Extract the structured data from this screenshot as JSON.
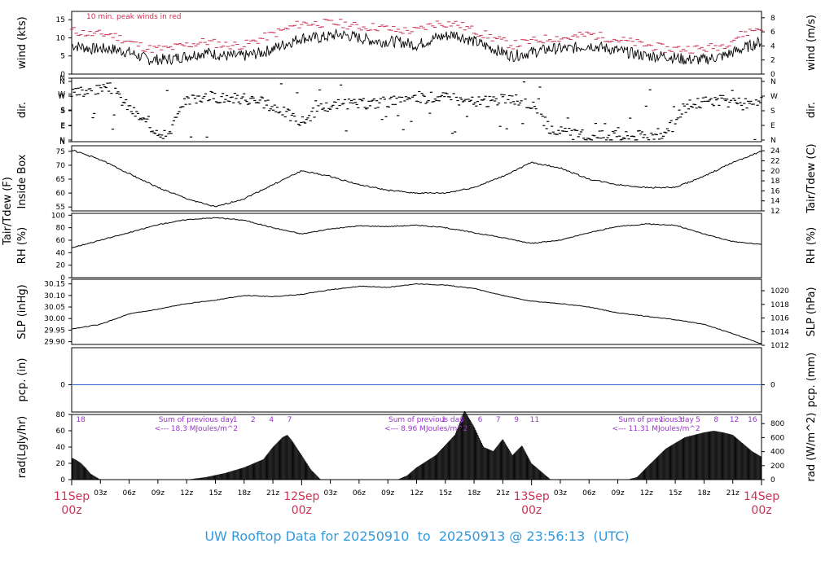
{
  "footer": {
    "title": "UW Rooftop Data for 20250910  to  20250913 @ 23:56:13  (UTC)"
  },
  "colors": {
    "peak": "#cc3355",
    "precip_line": "#3366cc",
    "note_purple": "#9933cc",
    "day_label": "#cc3355",
    "title": "#3399dd"
  },
  "chart_data": [
    {
      "id": "wind",
      "type": "line",
      "title": "",
      "ylabel": "wind (kts)",
      "ylabel_right": "wind (m/s)",
      "ylim": [
        0,
        17.3
      ],
      "y_ticks": [
        "0",
        "5",
        "10",
        "15"
      ],
      "y_tick_values": [
        0,
        5,
        10,
        15
      ],
      "y2_ticks": [
        "0",
        "2",
        "4",
        "6",
        "8"
      ],
      "y2_tick_values": [
        0,
        2,
        4,
        6,
        8
      ],
      "annotation": "10 min. peak winds in red",
      "x": [
        0,
        2,
        4,
        6,
        8,
        10,
        12,
        14,
        16,
        18,
        20,
        22,
        24,
        26,
        28,
        30,
        32,
        34,
        36,
        38,
        40,
        42,
        44,
        46,
        48,
        50,
        52,
        54,
        56,
        58,
        60,
        62,
        64,
        66,
        68,
        70,
        72
      ],
      "series": [
        {
          "role": "mean",
          "values": [
            8,
            7,
            7,
            6,
            4,
            4,
            5,
            6,
            5,
            5,
            6,
            8,
            10,
            10,
            11,
            10,
            9,
            9,
            8,
            10,
            11,
            9,
            7,
            5,
            6,
            7,
            7,
            8,
            7,
            6,
            5,
            5,
            4,
            4,
            5,
            7,
            9
          ]
        },
        {
          "role": "peak",
          "values": [
            12,
            11,
            11,
            9,
            7,
            7,
            8,
            9,
            8,
            8,
            10,
            12,
            14,
            14,
            14,
            13,
            13,
            12,
            12,
            14,
            14,
            12,
            10,
            8,
            9,
            10,
            10,
            11,
            10,
            9,
            8,
            7,
            7,
            7,
            8,
            11,
            13
          ]
        }
      ]
    },
    {
      "id": "dir",
      "type": "scatter",
      "ylabel": "dir.",
      "ylabel_right": "dir.",
      "ylim": [
        0,
        360
      ],
      "y_ticks": [
        "N",
        "E",
        "S",
        "W",
        "N"
      ],
      "y_tick_values": [
        0,
        90,
        180,
        270,
        360
      ],
      "x": [
        0,
        2,
        4,
        6,
        8,
        10,
        12,
        14,
        16,
        18,
        20,
        22,
        24,
        26,
        28,
        30,
        32,
        34,
        36,
        38,
        40,
        42,
        44,
        46,
        48,
        50,
        52,
        54,
        56,
        58,
        60,
        62,
        64,
        66,
        68,
        70,
        72
      ],
      "values": [
        280,
        300,
        320,
        200,
        90,
        30,
        250,
        270,
        260,
        250,
        230,
        180,
        110,
        200,
        220,
        220,
        230,
        240,
        250,
        270,
        250,
        230,
        240,
        250,
        220,
        60,
        40,
        20,
        30,
        25,
        30,
        40,
        200,
        240,
        240,
        220,
        230
      ]
    },
    {
      "id": "temp",
      "type": "line",
      "ylabel": "Tair/Tdew (F)",
      "ylabel2": "Inside Box",
      "ylabel_right": "Tair/Tdew (C)",
      "ylim": [
        53.6,
        77
      ],
      "y_ticks": [
        "55",
        "60",
        "65",
        "70",
        "75"
      ],
      "y_tick_values": [
        55,
        60,
        65,
        70,
        75
      ],
      "y2_ticks": [
        "12",
        "14",
        "16",
        "18",
        "20",
        "22",
        "24"
      ],
      "y2_tick_values": [
        12,
        14,
        16,
        18,
        20,
        22,
        24
      ],
      "x": [
        0,
        3,
        6,
        9,
        12,
        15,
        18,
        21,
        24,
        27,
        30,
        33,
        36,
        39,
        42,
        45,
        48,
        51,
        54,
        57,
        60,
        63,
        66,
        69,
        72
      ],
      "values": [
        75.5,
        72,
        67,
        62,
        58,
        55,
        58,
        63,
        68,
        66,
        63,
        61,
        60,
        60,
        62,
        66,
        71,
        69,
        65,
        63,
        62,
        62,
        66,
        71,
        75
      ]
    },
    {
      "id": "rh",
      "type": "line",
      "ylabel": "RH (%)",
      "ylabel_right": "RH (%)",
      "ylim": [
        0,
        103
      ],
      "y_ticks": [
        "0",
        "20",
        "40",
        "60",
        "80",
        "100"
      ],
      "y_tick_values": [
        0,
        20,
        40,
        60,
        80,
        100
      ],
      "x": [
        0,
        3,
        6,
        9,
        12,
        15,
        18,
        21,
        24,
        27,
        30,
        33,
        36,
        39,
        42,
        45,
        48,
        51,
        54,
        57,
        60,
        63,
        66,
        69,
        72
      ],
      "values": [
        48,
        60,
        72,
        85,
        93,
        96,
        92,
        80,
        70,
        78,
        83,
        82,
        84,
        80,
        72,
        64,
        55,
        60,
        72,
        82,
        86,
        84,
        70,
        58,
        53
      ]
    },
    {
      "id": "slp",
      "type": "line",
      "ylabel": "SLP (inHg)",
      "ylabel_right": "SLP (hPa)",
      "ylim": [
        29.888,
        30.17
      ],
      "y_ticks": [
        "29.90",
        "29.95",
        "30.00",
        "30.05",
        "30.10",
        "30.15"
      ],
      "y_tick_values": [
        29.9,
        29.95,
        30.0,
        30.05,
        30.1,
        30.15
      ],
      "y2_ticks": [
        "1012",
        "1014",
        "1016",
        "1018",
        "1020"
      ],
      "y2_tick_values": [
        1012,
        1014,
        1016,
        1018,
        1020
      ],
      "x": [
        0,
        3,
        6,
        9,
        12,
        15,
        18,
        21,
        24,
        27,
        30,
        33,
        36,
        39,
        42,
        45,
        48,
        51,
        54,
        57,
        60,
        63,
        66,
        69,
        72
      ],
      "values": [
        29.955,
        29.975,
        30.02,
        30.04,
        30.065,
        30.08,
        30.1,
        30.095,
        30.105,
        30.125,
        30.14,
        30.135,
        30.15,
        30.145,
        30.13,
        30.1,
        30.075,
        30.065,
        30.05,
        30.025,
        30.01,
        29.995,
        29.975,
        29.935,
        29.89
      ]
    },
    {
      "id": "pcp",
      "type": "line",
      "ylabel": "pcp. (in)",
      "ylabel_right": "pcp. (mm)",
      "y_ticks": [
        "0"
      ],
      "y2_ticks": [
        "0"
      ],
      "x": [
        0,
        72
      ],
      "values": [
        0,
        0
      ]
    },
    {
      "id": "rad",
      "type": "area",
      "ylabel": "rad(Lgly/hr)",
      "ylabel_right": "rad (W/m^2)",
      "ylim": [
        0,
        80
      ],
      "y_ticks": [
        "0",
        "20",
        "40",
        "60",
        "80"
      ],
      "y_tick_values": [
        0,
        20,
        40,
        60,
        80
      ],
      "y2_ticks": [
        "0",
        "200",
        "400",
        "600",
        "800"
      ],
      "y2_tick_values": [
        0,
        200,
        400,
        600,
        800
      ],
      "x": [
        0,
        0.5,
        1,
        1.5,
        2,
        3,
        12,
        14,
        16,
        18,
        20,
        21,
        22,
        22.5,
        23,
        24,
        25,
        26,
        34,
        35,
        36,
        38,
        40,
        41,
        42,
        43,
        44,
        45,
        46,
        47,
        48,
        49,
        50,
        58,
        59,
        60,
        62,
        64,
        66,
        67,
        68,
        69,
        70,
        71,
        72
      ],
      "values": [
        27,
        24,
        20,
        14,
        7,
        0,
        0,
        3,
        8,
        15,
        25,
        40,
        52,
        55,
        48,
        30,
        12,
        0,
        0,
        5,
        15,
        30,
        55,
        85,
        65,
        40,
        35,
        50,
        30,
        42,
        20,
        10,
        0,
        0,
        3,
        15,
        38,
        52,
        58,
        60,
        58,
        55,
        45,
        35,
        28
      ],
      "hour_labels_top": [
        {
          "x": 1,
          "label": "18"
        },
        {
          "x": 18,
          "label": "1"
        },
        {
          "x": 20,
          "label": "2"
        },
        {
          "x": 22,
          "label": "4"
        },
        {
          "x": 24,
          "label": "7"
        },
        {
          "x": 41,
          "label": "1"
        },
        {
          "x": 43,
          "label": "3"
        },
        {
          "x": 45,
          "label": "6"
        },
        {
          "x": 47,
          "label": "7"
        },
        {
          "x": 49,
          "label": "9"
        },
        {
          "x": 51,
          "label": "11"
        },
        {
          "x": 65,
          "label": "1"
        },
        {
          "x": 67,
          "label": "3"
        },
        {
          "x": 69,
          "label": "5"
        },
        {
          "x": 71,
          "label": "8"
        },
        {
          "x": 73,
          "label": "12"
        },
        {
          "x": 75,
          "label": "16"
        }
      ],
      "day_sums": [
        {
          "x": 13,
          "label": "Sum of previous day",
          "value": "<--- 18.3 MJoules/m^2"
        },
        {
          "x": 37,
          "label": "Sum of previous day",
          "value": "<--- 8.96 MJoules/m^2"
        },
        {
          "x": 61,
          "label": "Sum of previous day",
          "value": "<--- 11.31 MJoules/m^2"
        }
      ]
    }
  ],
  "x_axis": {
    "hours": [
      {
        "x": 3,
        "label": "03z"
      },
      {
        "x": 6,
        "label": "06z"
      },
      {
        "x": 9,
        "label": "09z"
      },
      {
        "x": 12,
        "label": "12z"
      },
      {
        "x": 15,
        "label": "15z"
      },
      {
        "x": 18,
        "label": "18z"
      },
      {
        "x": 21,
        "label": "21z"
      },
      {
        "x": 27,
        "label": "03z"
      },
      {
        "x": 30,
        "label": "06z"
      },
      {
        "x": 33,
        "label": "09z"
      },
      {
        "x": 36,
        "label": "12z"
      },
      {
        "x": 39,
        "label": "15z"
      },
      {
        "x": 42,
        "label": "18z"
      },
      {
        "x": 45,
        "label": "21z"
      },
      {
        "x": 51,
        "label": "03z"
      },
      {
        "x": 54,
        "label": "06z"
      },
      {
        "x": 57,
        "label": "09z"
      },
      {
        "x": 60,
        "label": "12z"
      },
      {
        "x": 63,
        "label": "15z"
      },
      {
        "x": 66,
        "label": "18z"
      },
      {
        "x": 69,
        "label": "21z"
      }
    ],
    "days": [
      {
        "x": 0,
        "label": "11Sep",
        "sub": "00z"
      },
      {
        "x": 24,
        "label": "12Sep",
        "sub": "00z"
      },
      {
        "x": 48,
        "label": "13Sep",
        "sub": "00z"
      },
      {
        "x": 72,
        "label": "14Sep",
        "sub": "00z"
      }
    ]
  }
}
